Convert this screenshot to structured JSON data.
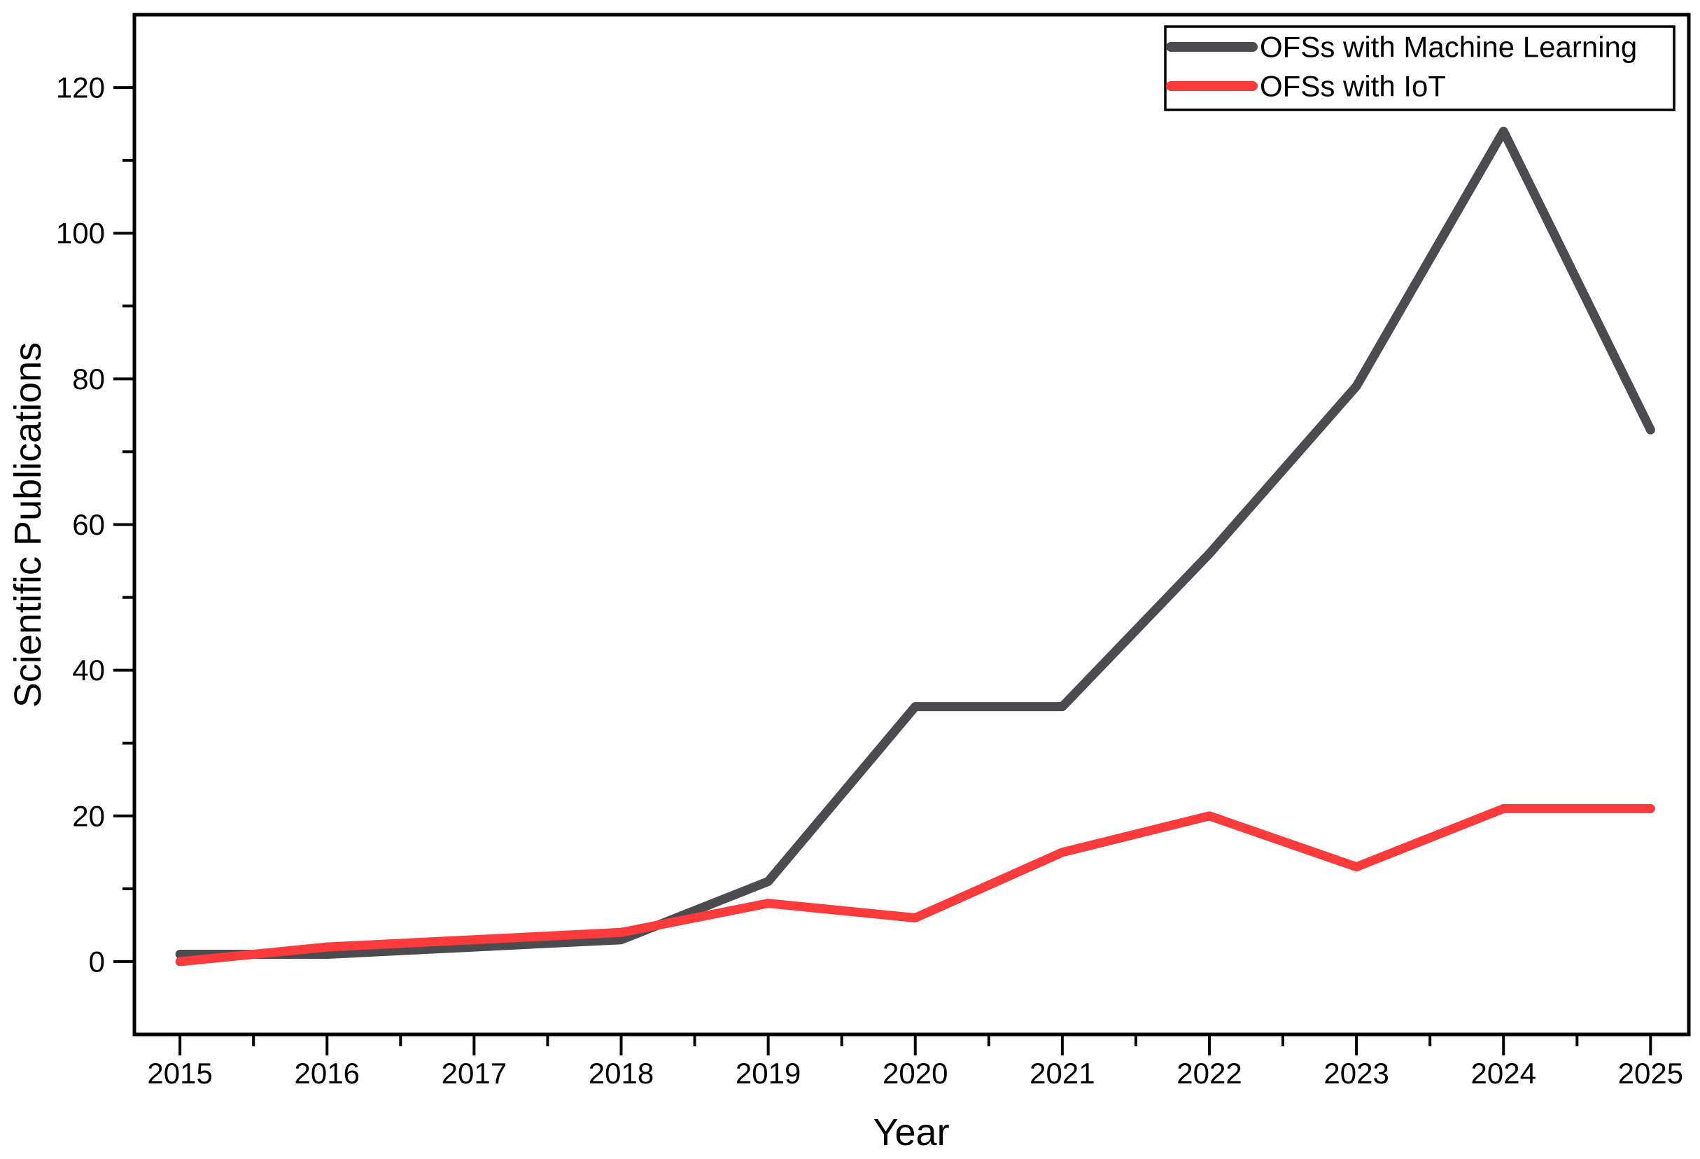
{
  "chart_data": {
    "type": "line",
    "title": "",
    "xlabel": "Year",
    "ylabel": "Scientific Publications",
    "x": [
      2015,
      2016,
      2017,
      2018,
      2019,
      2020,
      2021,
      2022,
      2023,
      2024,
      2025
    ],
    "series": [
      {
        "name": "OFSs with Machine Learning",
        "color": "#4c4c50",
        "values": [
          1,
          1,
          2,
          3,
          11,
          35,
          35,
          56,
          79,
          114,
          73
        ]
      },
      {
        "name": "OFSs with IoT",
        "color": "#fb3b3b",
        "values": [
          0,
          2,
          3,
          4,
          8,
          6,
          15,
          20,
          13,
          21,
          21
        ]
      }
    ],
    "xlim": [
      2014.69,
      2025.26
    ],
    "ylim": [
      -10,
      130
    ],
    "x_major_ticks": [
      2015,
      2016,
      2017,
      2018,
      2019,
      2020,
      2021,
      2022,
      2023,
      2024,
      2025
    ],
    "x_minor_ticks": [
      2015.5,
      2016.5,
      2017.5,
      2018.5,
      2019.5,
      2020.5,
      2021.5,
      2022.5,
      2023.5,
      2024.5
    ],
    "y_major_ticks": [
      0,
      20,
      40,
      60,
      80,
      100,
      120
    ],
    "y_minor_ticks": [
      10,
      30,
      50,
      70,
      90,
      110
    ],
    "grid": false,
    "legend_position": "top-right",
    "line_width": 13,
    "axis_color": "#000000",
    "background_color": "#ffffff"
  }
}
